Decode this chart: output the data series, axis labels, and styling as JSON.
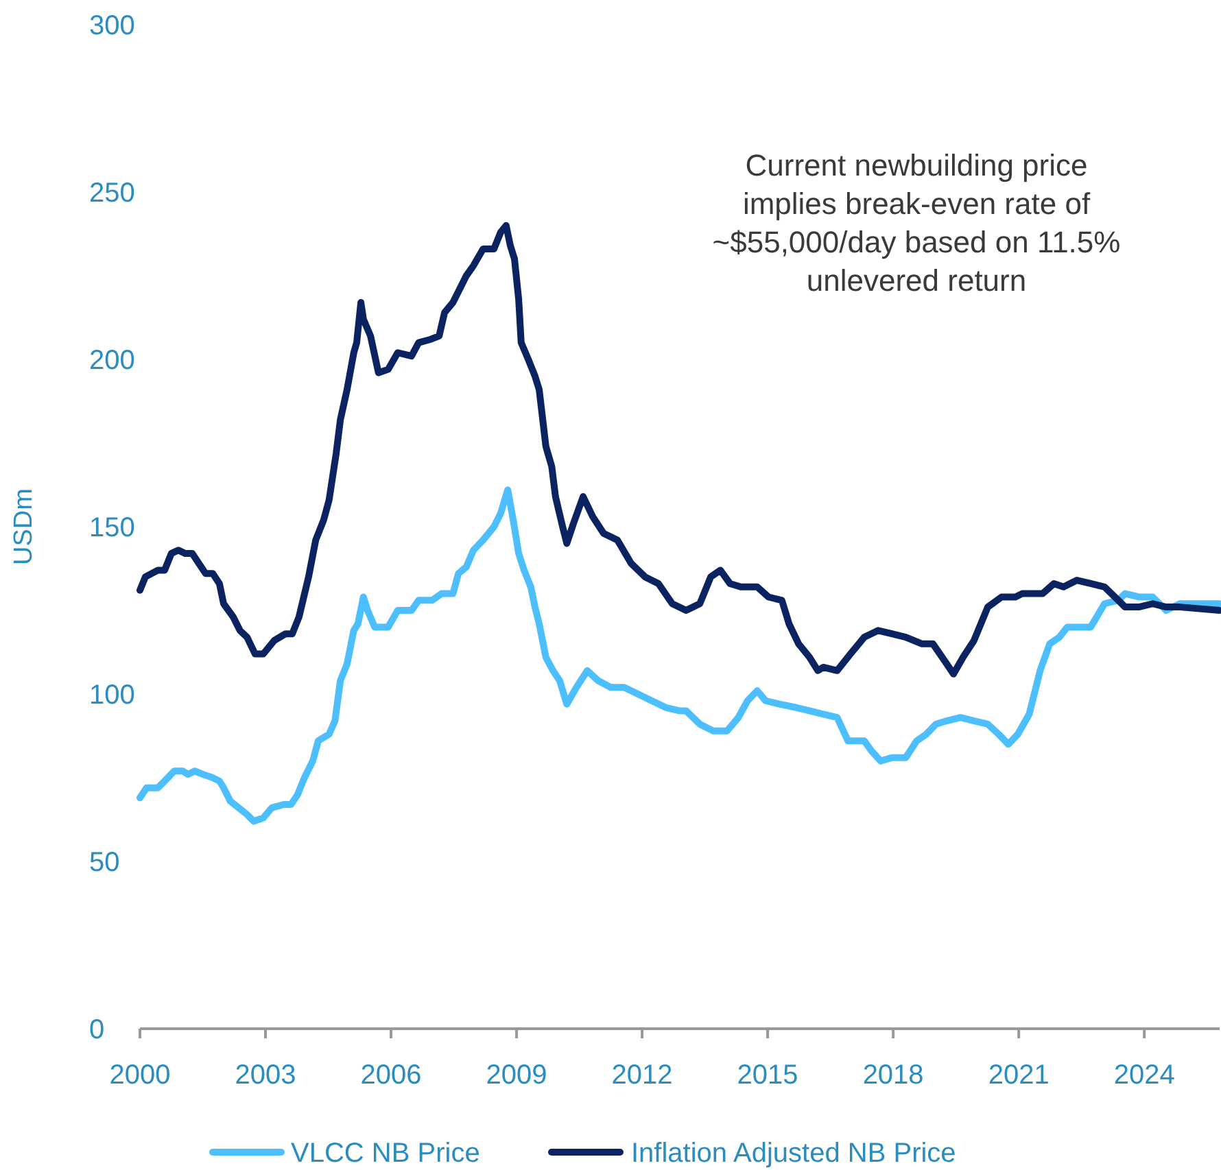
{
  "chart_data": {
    "type": "line",
    "ylabel": "USDm",
    "xlim": [
      2000,
      2025.8
    ],
    "ylim": [
      0,
      300
    ],
    "xticks": [
      2000,
      2003,
      2006,
      2009,
      2012,
      2015,
      2018,
      2021,
      2024
    ],
    "yticks": [
      0,
      50,
      100,
      150,
      200,
      250,
      300
    ],
    "grid": false,
    "legend": "bottom",
    "marker": "none",
    "line_style": "solid",
    "annotations": [
      "Current newbuilding price implies break-even rate of ~$55,000/day based on 11.5% unlevered return"
    ],
    "series": [
      {
        "name": "VLCC NB Price",
        "color": "#4dbfff",
        "x": [
          2000,
          2000.16,
          2000.43,
          2000.59,
          2000.82,
          2001.02,
          2001.15,
          2001.31,
          2001.51,
          2001.74,
          2001.9,
          2002,
          2002.16,
          2002.36,
          2002.56,
          2002.72,
          2002.95,
          2003.15,
          2003.44,
          2003.61,
          2003.77,
          2003.93,
          2004.13,
          2004.26,
          2004.52,
          2004.66,
          2004.79,
          2004.95,
          2005.11,
          2005.21,
          2005.34,
          2005.44,
          2005.61,
          2005.77,
          2005.93,
          2006.16,
          2006.49,
          2006.66,
          2006.98,
          2007.21,
          2007.48,
          2007.61,
          2007.8,
          2007.97,
          2008.2,
          2008.46,
          2008.62,
          2008.79,
          2008.92,
          2009.05,
          2009.18,
          2009.34,
          2009.44,
          2009.54,
          2009.7,
          2009.87,
          2010.03,
          2010.2,
          2010.43,
          2010.69,
          2010.95,
          2011.25,
          2011.57,
          2011.9,
          2012.23,
          2012.56,
          2012.89,
          2013.05,
          2013.38,
          2013.7,
          2014.03,
          2014.3,
          2014.52,
          2014.75,
          2014.95,
          2015.28,
          2015.67,
          2016,
          2016.33,
          2016.66,
          2016.92,
          2017.31,
          2017.48,
          2017.7,
          2017.97,
          2018.3,
          2018.56,
          2018.79,
          2019.02,
          2019.28,
          2019.61,
          2019.93,
          2020.26,
          2020.52,
          2020.75,
          2020.98,
          2021.25,
          2021.51,
          2021.74,
          2021.97,
          2022.16,
          2022.72,
          2023.05,
          2023.38,
          2023.54,
          2023.87,
          2024.2,
          2024.52,
          2024.85,
          2025.8
        ],
        "values": [
          69,
          72,
          72,
          74,
          77,
          77,
          76,
          77,
          76,
          75,
          74,
          72,
          68,
          66,
          64,
          62,
          63,
          66,
          67,
          67,
          70,
          75,
          80,
          86,
          88,
          92,
          104,
          109,
          119,
          121,
          129,
          125,
          120,
          120,
          120,
          125,
          125,
          128,
          128,
          130,
          130,
          136,
          138,
          143,
          146,
          150,
          154,
          161,
          152,
          142,
          137,
          132,
          126,
          121,
          111,
          107,
          104,
          97,
          102,
          107,
          104,
          102,
          102,
          100,
          98,
          96,
          95,
          95,
          91,
          89,
          89,
          93,
          98,
          101,
          98,
          97,
          96,
          95,
          94,
          93,
          86,
          86,
          83,
          80,
          81,
          81,
          86,
          88,
          91,
          92,
          93,
          92,
          91,
          88,
          85,
          88,
          94,
          107,
          115,
          117,
          120,
          120,
          127,
          128,
          130,
          129,
          129,
          125,
          127,
          127
        ]
      },
      {
        "name": "Inflation Adjusted NB Price",
        "color": "#0b2461",
        "x": [
          2000,
          2000.13,
          2000.43,
          2000.59,
          2000.75,
          2000.92,
          2001.08,
          2001.25,
          2001.41,
          2001.57,
          2001.74,
          2001.9,
          2002,
          2002.23,
          2002.39,
          2002.56,
          2002.75,
          2002.95,
          2003.21,
          2003.48,
          2003.64,
          2003.8,
          2004.03,
          2004.2,
          2004.39,
          2004.52,
          2004.69,
          2004.79,
          2004.95,
          2005.11,
          2005.18,
          2005.28,
          2005.34,
          2005.51,
          2005.7,
          2005.93,
          2006.16,
          2006.49,
          2006.66,
          2006.95,
          2007.15,
          2007.28,
          2007.48,
          2007.8,
          2007.97,
          2008.2,
          2008.46,
          2008.62,
          2008.75,
          2008.85,
          2008.95,
          2009.05,
          2009.11,
          2009.28,
          2009.44,
          2009.54,
          2009.7,
          2009.84,
          2009.93,
          2010.1,
          2010.2,
          2010.36,
          2010.59,
          2010.82,
          2011.08,
          2011.41,
          2011.74,
          2012.07,
          2012.39,
          2012.72,
          2013.05,
          2013.38,
          2013.64,
          2013.87,
          2014.1,
          2014.36,
          2014.75,
          2015.02,
          2015.34,
          2015.51,
          2015.74,
          2016,
          2016.2,
          2016.33,
          2016.66,
          2016.98,
          2017.31,
          2017.64,
          2017.97,
          2018.3,
          2018.69,
          2018.95,
          2019.28,
          2019.44,
          2019.67,
          2019.93,
          2020.26,
          2020.59,
          2020.92,
          2021.08,
          2021.57,
          2021.84,
          2022.07,
          2022.39,
          2022.72,
          2023.05,
          2023.38,
          2023.54,
          2023.87,
          2024.2,
          2024.52,
          2024.85,
          2025.8
        ],
        "values": [
          131,
          135,
          137,
          137,
          142,
          143,
          142,
          142,
          139,
          136,
          136,
          133,
          127,
          123,
          119,
          117,
          112,
          112,
          116,
          118,
          118,
          123,
          135,
          146,
          152,
          158,
          172,
          182,
          191,
          202,
          205,
          217,
          212,
          207,
          196,
          197,
          202,
          201,
          205,
          206,
          207,
          214,
          217,
          225,
          228,
          233,
          233,
          238,
          240,
          234,
          230,
          218,
          205,
          200,
          195,
          191,
          174,
          168,
          159,
          150,
          145,
          151,
          159,
          153,
          148,
          146,
          139,
          135,
          133,
          127,
          125,
          127,
          135,
          137,
          133,
          132,
          132,
          129,
          128,
          121,
          115,
          111,
          107,
          108,
          107,
          112,
          117,
          119,
          118,
          117,
          115,
          115,
          109,
          106,
          111,
          116,
          126,
          129,
          129,
          130,
          130,
          133,
          132,
          134,
          133,
          132,
          128,
          126,
          126,
          127,
          126,
          126,
          125
        ]
      }
    ]
  }
}
